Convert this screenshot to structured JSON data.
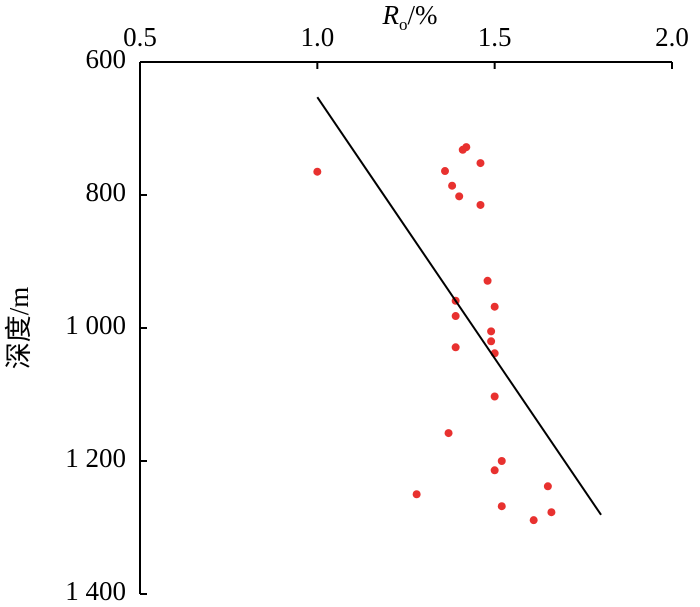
{
  "chart_data": {
    "type": "scatter",
    "xlabel": {
      "symbol": "R",
      "subscript": "o",
      "unit": "/%"
    },
    "ylabel": "深度/m",
    "xlim": [
      0.5,
      2.0
    ],
    "xticks": [
      0.5,
      {
        "value": 1,
        "label": "1.0"
      },
      1.5,
      {
        "value": 2,
        "label": "2.0"
      }
    ],
    "ylim": [
      600,
      1400
    ],
    "y_reversed": true,
    "yticks": [
      600,
      800,
      {
        "value": 1000,
        "label": "1 000"
      },
      {
        "value": 1200,
        "label": "1 200"
      },
      {
        "value": 1400,
        "label": "1 400"
      }
    ],
    "series": [
      {
        "type": "scatter",
        "color": "#e8312f",
        "x": [
          1.0,
          1.42,
          1.41,
          1.46,
          1.36,
          1.38,
          1.4,
          1.46,
          1.48,
          1.5,
          1.39,
          1.39,
          1.49,
          1.49,
          1.5,
          1.39,
          1.5,
          1.37,
          1.52,
          1.5,
          1.65,
          1.66,
          1.28,
          1.52,
          1.61
        ],
        "values": [
          765,
          728,
          732,
          752,
          764,
          786,
          802,
          815,
          929,
          968,
          959,
          982,
          1005,
          1020,
          1038,
          1029,
          1103,
          1158,
          1200,
          1214,
          1238,
          1277,
          1250,
          1268,
          1289
        ]
      },
      {
        "type": "line",
        "color": "#000000",
        "x": [
          1.0,
          1.8
        ],
        "values": [
          653,
          1281
        ]
      }
    ]
  }
}
